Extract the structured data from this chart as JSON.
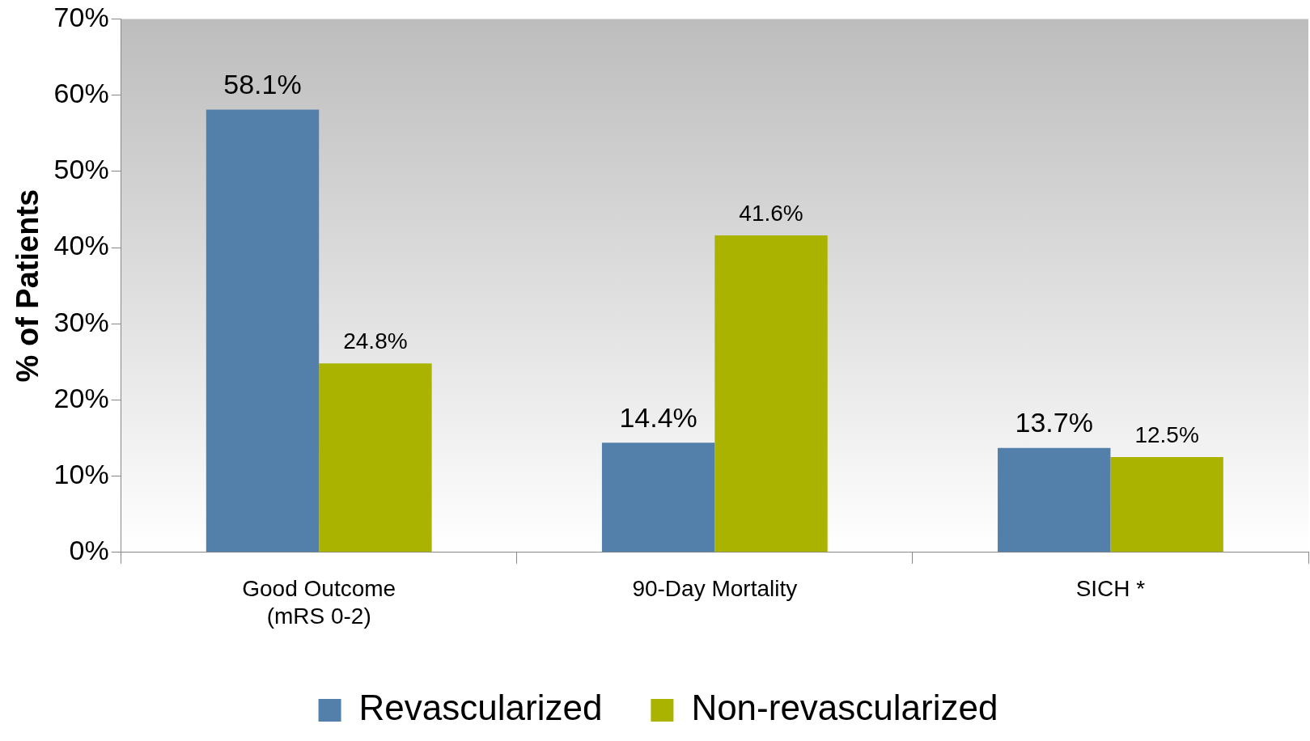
{
  "chart_data": {
    "type": "bar",
    "ylabel": "% of Patients",
    "categories": [
      "Good Outcome\n(mRS 0-2)",
      "90-Day Mortality",
      "SICH *"
    ],
    "series": [
      {
        "name": "Revascularized",
        "color": "#5280ab",
        "values": [
          58.1,
          14.4,
          13.7
        ],
        "value_labels": [
          "58.1%",
          "14.4%",
          "13.7%"
        ]
      },
      {
        "name": "Non-revascularized",
        "color": "#a9b300",
        "values": [
          24.8,
          41.6,
          12.5
        ],
        "value_labels": [
          "24.8%",
          "41.6%",
          "12.5%"
        ]
      }
    ],
    "ylim": [
      0,
      70
    ],
    "yticks": [
      {
        "value": 0,
        "label": "0%"
      },
      {
        "value": 10,
        "label": "10%"
      },
      {
        "value": 20,
        "label": "20%"
      },
      {
        "value": 30,
        "label": "30%"
      },
      {
        "value": 40,
        "label": "40%"
      },
      {
        "value": 50,
        "label": "50%"
      },
      {
        "value": 60,
        "label": "60%"
      },
      {
        "value": 70,
        "label": "70%"
      }
    ],
    "grid": false,
    "legend": "bottom"
  }
}
